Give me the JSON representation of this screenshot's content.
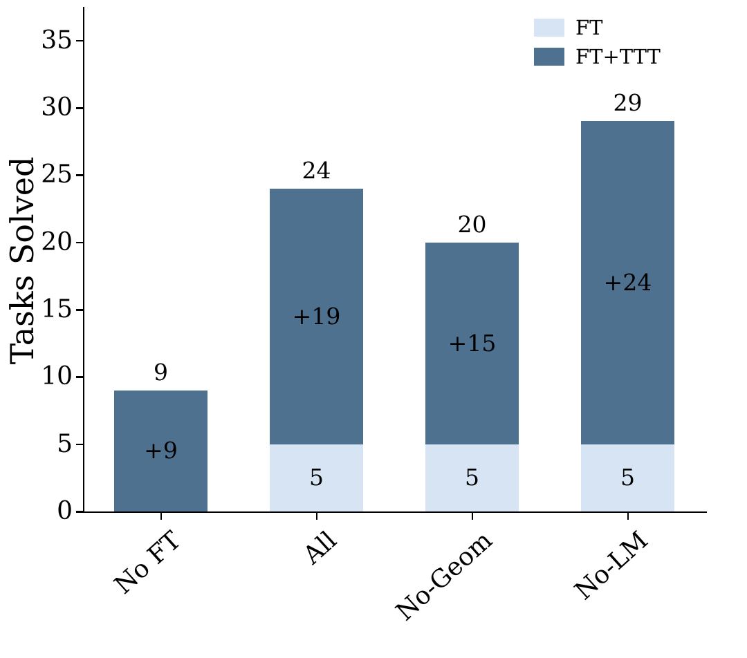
{
  "chart_data": {
    "type": "bar",
    "stacked": true,
    "ylabel": "Tasks Solved",
    "ylim": [
      0,
      37.5
    ],
    "yticks": [
      0,
      5,
      10,
      15,
      20,
      25,
      30,
      35
    ],
    "categories": [
      "No FT",
      "All",
      "No-Geom",
      "No-LM"
    ],
    "series": [
      {
        "name": "FT",
        "color": "#d6e4f4",
        "values": [
          0,
          5,
          5,
          5
        ],
        "labels": [
          "",
          "5",
          "5",
          "5"
        ]
      },
      {
        "name": "FT+TTT",
        "color": "#4f7190",
        "values": [
          9,
          19,
          15,
          24
        ],
        "labels": [
          "+9",
          "+19",
          "+15",
          "+24"
        ]
      }
    ],
    "totals": [
      9,
      24,
      20,
      29
    ],
    "legend": {
      "position": "upper right",
      "entries": [
        "FT",
        "FT+TTT"
      ]
    },
    "axis_color": "#000000",
    "background_color": "#ffffff",
    "grid": false
  }
}
